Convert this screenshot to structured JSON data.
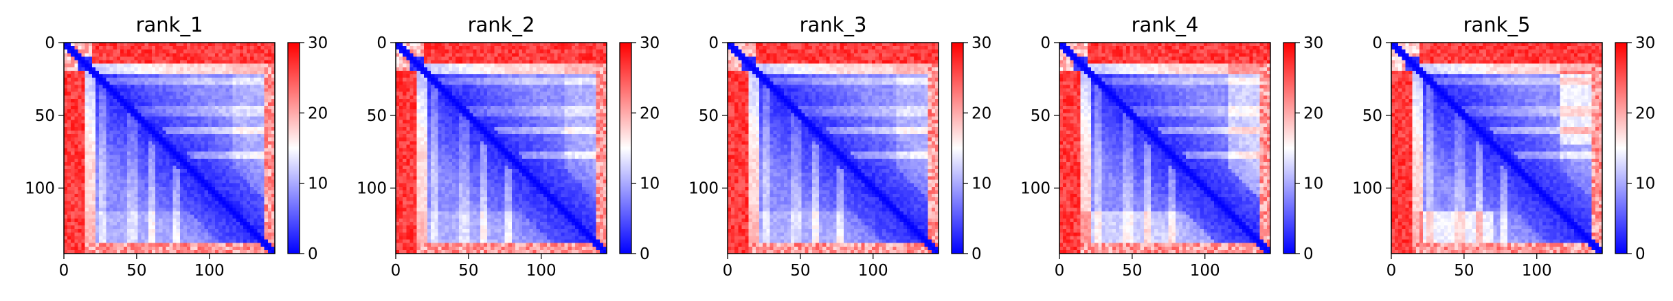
{
  "chart_data": {
    "type": "heatmap",
    "colormap": {
      "name": "bwr",
      "low": "#0000ff",
      "mid": "#ffffff",
      "high": "#ff0000"
    },
    "colorbar": {
      "range": [
        0,
        30
      ],
      "ticks": [
        "0",
        "10",
        "20",
        "30"
      ]
    },
    "x_ticks": [
      "0",
      "50",
      "100"
    ],
    "y_ticks": [
      "0",
      "50",
      "100"
    ],
    "axis_range": [
      0,
      145
    ],
    "panels": [
      {
        "title": "rank_1"
      },
      {
        "title": "rank_2"
      },
      {
        "title": "rank_3"
      },
      {
        "title": "rank_4"
      },
      {
        "title": "rank_5"
      }
    ]
  }
}
